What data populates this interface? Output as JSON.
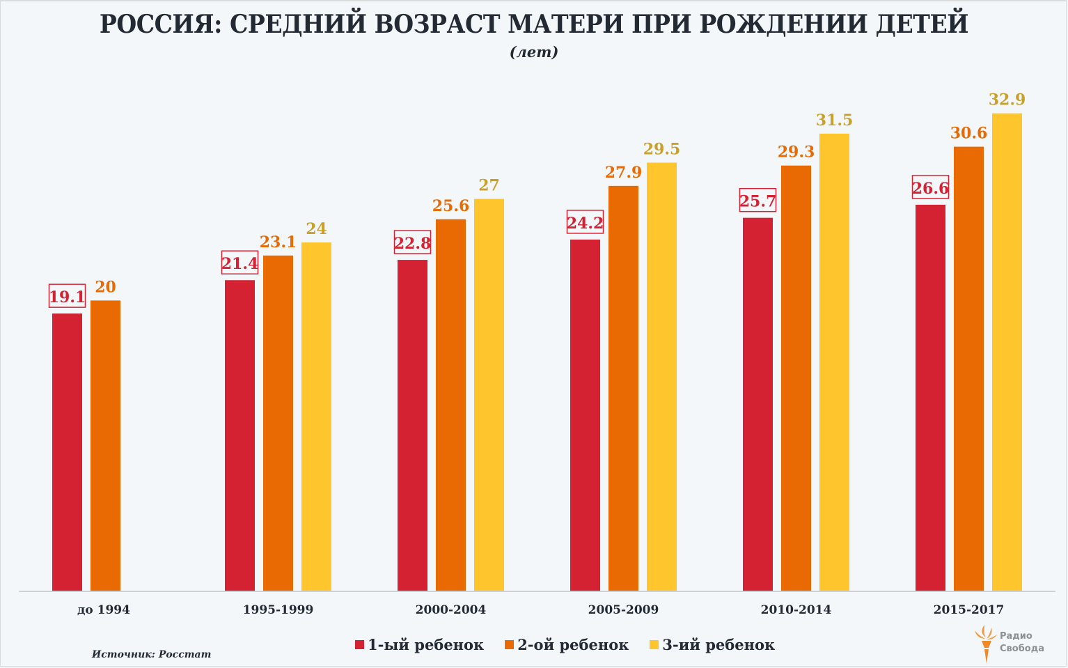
{
  "title": "РОССИЯ: СРЕДНИЙ ВОЗРАСТ МАТЕРИ ПРИ РОЖДЕНИИ ДЕТЕЙ",
  "subtitle": "(лет)",
  "source": "Источник: Росстат",
  "logo": {
    "line1": "Радио",
    "line2": "Свобода",
    "icon": "torch-icon"
  },
  "colors": {
    "series1": "#d42233",
    "series2": "#e96a03",
    "series3": "#fec52d",
    "label1": "#d42233",
    "label2": "#e96a03",
    "label3": "#c9a02a",
    "text": "#232a33",
    "axis": "#d0d3d6"
  },
  "chart_data": {
    "type": "bar",
    "title": "РОССИЯ: СРЕДНИЙ ВОЗРАСТ МАТЕРИ ПРИ РОЖДЕНИИ ДЕТЕЙ",
    "subtitle": "(лет)",
    "xlabel": "",
    "ylabel": "",
    "ylim": [
      0,
      33
    ],
    "grid": false,
    "legend_position": "bottom",
    "categories": [
      "до 1994",
      "1995-1999",
      "2000-2004",
      "2005-2009",
      "2010-2014",
      "2015-2017"
    ],
    "series": [
      {
        "name": "1-ый ребенок",
        "values": [
          19.1,
          21.4,
          22.8,
          24.2,
          25.7,
          26.6
        ]
      },
      {
        "name": "2-ой ребенок",
        "values": [
          20,
          23.1,
          25.6,
          27.9,
          29.3,
          30.6
        ]
      },
      {
        "name": "3-ий ребенок",
        "values": [
          null,
          24,
          27,
          29.5,
          31.5,
          32.9
        ]
      }
    ]
  }
}
